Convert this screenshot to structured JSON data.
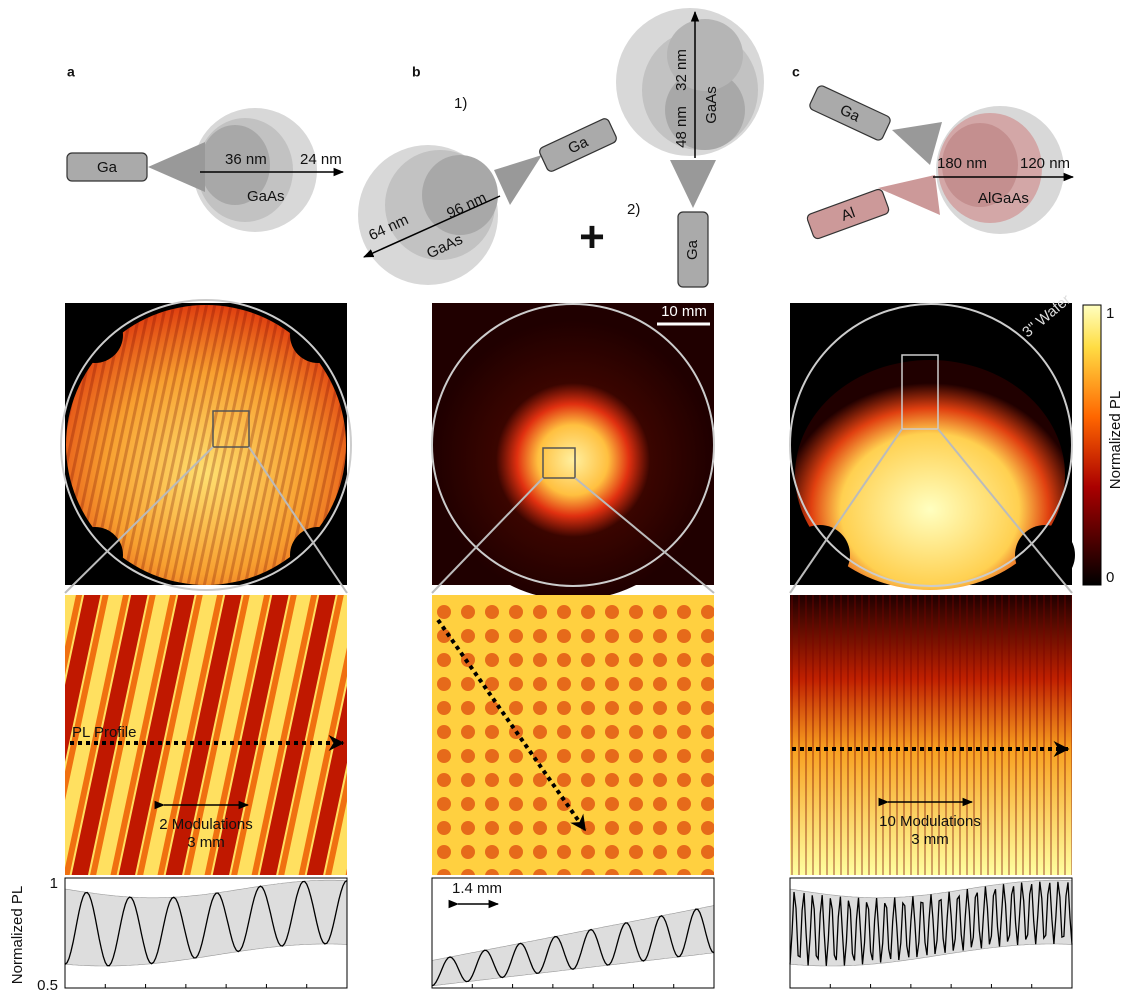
{
  "panels": [
    {
      "label": "a",
      "source": "Ga",
      "thicknesses": [
        "36 nm",
        "24 nm"
      ],
      "material": "GaAs",
      "profile_label": "PL Profile",
      "modulations": "2 Modulations",
      "span": "3 mm"
    },
    {
      "label": "b",
      "plus": "+",
      "scale_bar": "10 mm",
      "period": "1.4 mm",
      "steps": [
        {
          "step": "1)",
          "source": "Ga",
          "thicknesses": [
            "96 nm",
            "64 nm"
          ],
          "material": "GaAs"
        },
        {
          "step": "2)",
          "source": "Ga",
          "thicknesses": [
            "32 nm",
            "48 nm"
          ],
          "material": "GaAs"
        }
      ]
    },
    {
      "label": "c",
      "sources": [
        "Ga",
        "Al"
      ],
      "thicknesses": [
        "180 nm",
        "120 nm"
      ],
      "material": "AlGaAs",
      "wafer": "3\" Wafer",
      "modulations": "10 Modulations",
      "span": "3 mm"
    }
  ],
  "colorbar": {
    "label": "Normalized PL",
    "ticks": [
      1,
      0
    ]
  },
  "profile_axis": {
    "label": "Normalized PL",
    "ticks": [
      1,
      0.5
    ]
  }
}
